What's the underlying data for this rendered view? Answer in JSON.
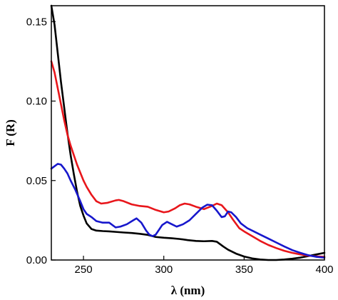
{
  "chart_data": {
    "type": "line",
    "title": "",
    "xlabel": "λ (nm)",
    "ylabel": "F (R)",
    "xlim": [
      230,
      400
    ],
    "ylim": [
      0,
      0.16
    ],
    "x_ticks": [
      250,
      300,
      350,
      400
    ],
    "x_tick_labels": [
      "250",
      "300",
      "350",
      "400"
    ],
    "y_ticks": [
      0.0,
      0.05,
      0.1,
      0.15
    ],
    "y_tick_labels": [
      "0.00",
      "0.05",
      "0.10",
      "0.15"
    ],
    "grid": false,
    "legend": "none",
    "series": [
      {
        "color": "#000000",
        "points": [
          [
            230,
            0.16
          ],
          [
            232,
            0.148
          ],
          [
            234,
            0.13
          ],
          [
            236,
            0.112
          ],
          [
            238,
            0.096
          ],
          [
            240,
            0.08
          ],
          [
            242,
            0.066
          ],
          [
            244,
            0.054
          ],
          [
            246,
            0.043
          ],
          [
            248,
            0.034
          ],
          [
            250,
            0.028
          ],
          [
            252,
            0.023
          ],
          [
            255,
            0.0195
          ],
          [
            258,
            0.0185
          ],
          [
            262,
            0.0182
          ],
          [
            266,
            0.018
          ],
          [
            270,
            0.0177
          ],
          [
            275,
            0.0173
          ],
          [
            280,
            0.017
          ],
          [
            285,
            0.0165
          ],
          [
            290,
            0.0158
          ],
          [
            295,
            0.0145
          ],
          [
            300,
            0.014
          ],
          [
            305,
            0.0137
          ],
          [
            310,
            0.0132
          ],
          [
            315,
            0.0125
          ],
          [
            320,
            0.012
          ],
          [
            325,
            0.0118
          ],
          [
            330,
            0.012
          ],
          [
            333,
            0.0115
          ],
          [
            337,
            0.0085
          ],
          [
            340,
            0.0065
          ],
          [
            345,
            0.004
          ],
          [
            350,
            0.0022
          ],
          [
            355,
            0.001
          ],
          [
            360,
            0.0003
          ],
          [
            365,
            0.0
          ],
          [
            370,
            0.0
          ],
          [
            375,
            0.0003
          ],
          [
            380,
            0.0008
          ],
          [
            385,
            0.0015
          ],
          [
            390,
            0.0025
          ],
          [
            395,
            0.0035
          ],
          [
            400,
            0.0045
          ]
        ]
      },
      {
        "color": "#e8161b",
        "points": [
          [
            230,
            0.125
          ],
          [
            232,
            0.118
          ],
          [
            234,
            0.108
          ],
          [
            236,
            0.098
          ],
          [
            238,
            0.088
          ],
          [
            240,
            0.079
          ],
          [
            242,
            0.072
          ],
          [
            244,
            0.066
          ],
          [
            246,
            0.06
          ],
          [
            248,
            0.055
          ],
          [
            250,
            0.05
          ],
          [
            252,
            0.046
          ],
          [
            255,
            0.041
          ],
          [
            258,
            0.037
          ],
          [
            261,
            0.0355
          ],
          [
            265,
            0.036
          ],
          [
            270,
            0.0375
          ],
          [
            272,
            0.0378
          ],
          [
            275,
            0.037
          ],
          [
            280,
            0.035
          ],
          [
            285,
            0.034
          ],
          [
            290,
            0.0335
          ],
          [
            295,
            0.0315
          ],
          [
            300,
            0.03
          ],
          [
            303,
            0.0305
          ],
          [
            307,
            0.0325
          ],
          [
            310,
            0.0345
          ],
          [
            313,
            0.0355
          ],
          [
            316,
            0.035
          ],
          [
            320,
            0.0335
          ],
          [
            325,
            0.032
          ],
          [
            330,
            0.034
          ],
          [
            333,
            0.0355
          ],
          [
            336,
            0.0345
          ],
          [
            340,
            0.03
          ],
          [
            343,
            0.0255
          ],
          [
            347,
            0.02
          ],
          [
            350,
            0.018
          ],
          [
            355,
            0.015
          ],
          [
            360,
            0.012
          ],
          [
            365,
            0.0095
          ],
          [
            370,
            0.0075
          ],
          [
            375,
            0.0058
          ],
          [
            380,
            0.0045
          ],
          [
            385,
            0.0035
          ],
          [
            390,
            0.0027
          ],
          [
            395,
            0.0023
          ],
          [
            400,
            0.002
          ]
        ]
      },
      {
        "color": "#1717cc",
        "points": [
          [
            230,
            0.0575
          ],
          [
            232,
            0.059
          ],
          [
            234,
            0.0605
          ],
          [
            236,
            0.06
          ],
          [
            238,
            0.0575
          ],
          [
            240,
            0.0545
          ],
          [
            242,
            0.05
          ],
          [
            245,
            0.044
          ],
          [
            248,
            0.037
          ],
          [
            250,
            0.032
          ],
          [
            252,
            0.029
          ],
          [
            255,
            0.027
          ],
          [
            258,
            0.0245
          ],
          [
            262,
            0.0235
          ],
          [
            266,
            0.0235
          ],
          [
            270,
            0.0205
          ],
          [
            273,
            0.021
          ],
          [
            277,
            0.0225
          ],
          [
            281,
            0.025
          ],
          [
            283,
            0.0262
          ],
          [
            286,
            0.0235
          ],
          [
            289,
            0.0185
          ],
          [
            291,
            0.016
          ],
          [
            293,
            0.015
          ],
          [
            295,
            0.016
          ],
          [
            297,
            0.019
          ],
          [
            299,
            0.022
          ],
          [
            302,
            0.024
          ],
          [
            305,
            0.0225
          ],
          [
            308,
            0.021
          ],
          [
            312,
            0.0225
          ],
          [
            316,
            0.025
          ],
          [
            320,
            0.029
          ],
          [
            324,
            0.033
          ],
          [
            327,
            0.0348
          ],
          [
            330,
            0.0345
          ],
          [
            333,
            0.031
          ],
          [
            336,
            0.027
          ],
          [
            338,
            0.0275
          ],
          [
            340,
            0.0305
          ],
          [
            342,
            0.03
          ],
          [
            345,
            0.027
          ],
          [
            348,
            0.023
          ],
          [
            352,
            0.02
          ],
          [
            356,
            0.018
          ],
          [
            360,
            0.016
          ],
          [
            365,
            0.0135
          ],
          [
            370,
            0.011
          ],
          [
            375,
            0.0085
          ],
          [
            380,
            0.0062
          ],
          [
            385,
            0.0045
          ],
          [
            390,
            0.003
          ],
          [
            395,
            0.002
          ],
          [
            400,
            0.0015
          ]
        ]
      }
    ]
  }
}
